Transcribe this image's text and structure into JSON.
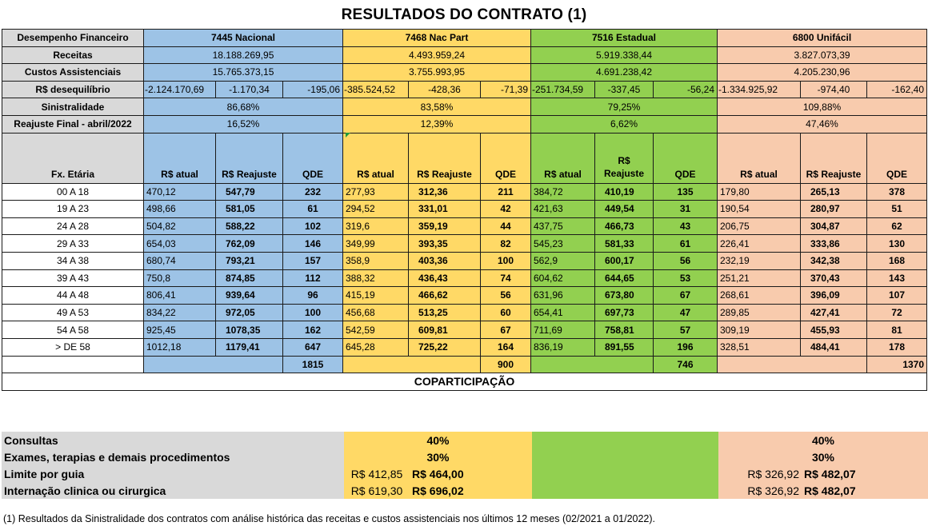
{
  "title": "RESULTADOS DO CONTRATO  (1)",
  "labels": {
    "desempenho": "Desempenho Financeiro",
    "receitas": "Receitas",
    "custos": "Custos Assistenciais",
    "desequilibrio": "R$ desequilíbrio",
    "sinistralidade": "Sinistralidade",
    "reajuste": "Reajuste Final - abril/2022",
    "faixa": "Fx. Etária"
  },
  "plans": [
    {
      "name": "7445 Nacional",
      "receitas": "18.188.269,95",
      "custos": "15.765.373,15",
      "deseq": [
        "-2.124.170,69",
        "-1.170,34",
        "-195,06"
      ],
      "sinistralidade": "86,68%",
      "reajuste": "16,52%",
      "col_atual": "R$ atual",
      "col_reajuste": "R$ Reajuste",
      "col_qde": "QDE",
      "total": "1815"
    },
    {
      "name": "7468 Nac Part",
      "receitas": "4.493.959,24",
      "custos": "3.755.993,95",
      "deseq": [
        "-385.524,52",
        "-428,36",
        "-71,39"
      ],
      "sinistralidade": "83,58%",
      "reajuste": "12,39%",
      "col_atual": "R$ atual",
      "col_reajuste": "R$ Reajuste",
      "col_qde": "QDE",
      "total": "900"
    },
    {
      "name": "7516 Estadual",
      "receitas": "5.919.338,44",
      "custos": "4.691.238,42",
      "deseq": [
        "-251.734,59",
        "-337,45",
        "-56,24"
      ],
      "sinistralidade": "79,25%",
      "reajuste": "6,62%",
      "col_atual": "R$ atual",
      "col_reajuste": "R$ Reajuste",
      "col_qde": "QDE",
      "total": "746"
    },
    {
      "name": "6800 Unifácil",
      "receitas": "3.827.073,39",
      "custos": "4.205.230,96",
      "deseq": [
        "-1.334.925,92",
        "-974,40",
        "-162,40"
      ],
      "sinistralidade": "109,88%",
      "reajuste": "47,46%",
      "col_atual": "R$ atual",
      "col_reajuste": "R$ Reajuste",
      "col_qde": "QDE",
      "total": "1370"
    }
  ],
  "rows": [
    {
      "age": "00 A 18",
      "v": [
        [
          "470,12",
          "547,79",
          "232"
        ],
        [
          "277,93",
          "312,36",
          "211"
        ],
        [
          "384,72",
          "410,19",
          "135"
        ],
        [
          "179,80",
          "265,13",
          "378"
        ]
      ]
    },
    {
      "age": "19 A 23",
      "v": [
        [
          "498,66",
          "581,05",
          "61"
        ],
        [
          "294,52",
          "331,01",
          "42"
        ],
        [
          "421,63",
          "449,54",
          "31"
        ],
        [
          "190,54",
          "280,97",
          "51"
        ]
      ]
    },
    {
      "age": "24 A 28",
      "v": [
        [
          "504,82",
          "588,22",
          "102"
        ],
        [
          "319,6",
          "359,19",
          "44"
        ],
        [
          "437,75",
          "466,73",
          "43"
        ],
        [
          "206,75",
          "304,87",
          "62"
        ]
      ]
    },
    {
      "age": "29 A 33",
      "v": [
        [
          "654,03",
          "762,09",
          "146"
        ],
        [
          "349,99",
          "393,35",
          "82"
        ],
        [
          "545,23",
          "581,33",
          "61"
        ],
        [
          "226,41",
          "333,86",
          "130"
        ]
      ]
    },
    {
      "age": "34 A 38",
      "v": [
        [
          "680,74",
          "793,21",
          "157"
        ],
        [
          "358,9",
          "403,36",
          "100"
        ],
        [
          "562,9",
          "600,17",
          "56"
        ],
        [
          "232,19",
          "342,38",
          "168"
        ]
      ]
    },
    {
      "age": "39 A 43",
      "v": [
        [
          "750,8",
          "874,85",
          "112"
        ],
        [
          "388,32",
          "436,43",
          "74"
        ],
        [
          "604,62",
          "644,65",
          "53"
        ],
        [
          "251,21",
          "370,43",
          "143"
        ]
      ]
    },
    {
      "age": "44 A 48",
      "v": [
        [
          "806,41",
          "939,64",
          "96"
        ],
        [
          "415,19",
          "466,62",
          "56"
        ],
        [
          "631,96",
          "673,80",
          "67"
        ],
        [
          "268,61",
          "396,09",
          "107"
        ]
      ]
    },
    {
      "age": "49 A 53",
      "v": [
        [
          "834,22",
          "972,05",
          "100"
        ],
        [
          "456,68",
          "513,25",
          "60"
        ],
        [
          "654,41",
          "697,73",
          "47"
        ],
        [
          "289,85",
          "427,41",
          "72"
        ]
      ]
    },
    {
      "age": "54 A 58",
      "v": [
        [
          "925,45",
          "1078,35",
          "162"
        ],
        [
          "542,59",
          "609,81",
          "67"
        ],
        [
          "711,69",
          "758,81",
          "57"
        ],
        [
          "309,19",
          "455,93",
          "81"
        ]
      ]
    },
    {
      "age": "> DE 58",
      "v": [
        [
          "1012,18",
          "1179,41",
          "647"
        ],
        [
          "645,28",
          "725,22",
          "164"
        ],
        [
          "836,19",
          "891,55",
          "196"
        ],
        [
          "328,51",
          "484,41",
          "178"
        ]
      ]
    }
  ],
  "coparticipacao": {
    "title": "COPARTICIPAÇÃO",
    "items": [
      {
        "label": "Consultas",
        "nac_part": "40%",
        "unifacil": "40%"
      },
      {
        "label": "Exames, terapias e demais procedimentos",
        "nac_part": "30%",
        "unifacil": "30%"
      },
      {
        "label": "Limite por guia",
        "nac_part_atual": "R$ 412,85",
        "nac_part_novo": "R$ 464,00",
        "unifacil_atual": "R$ 326,92",
        "unifacil_novo": "R$ 482,07"
      },
      {
        "label": "Internação clinica ou cirurgica",
        "nac_part_atual": "R$ 619,30",
        "nac_part_novo": "R$ 696,02",
        "unifacil_atual": "R$ 326,92",
        "unifacil_novo": "R$ 482,07"
      }
    ]
  },
  "footnote": "(1) Resultados da Sinistralidade dos contratos com análise histórica das receitas e custos assistenciais nos últimos 12 meses (02/2021 a 01/2022).",
  "colors": {
    "nacional": "#9dc3e6",
    "nac_part": "#ffd966",
    "estadual": "#92d050",
    "unifacil": "#f8cbad",
    "label_gray": "#d9d9d9"
  }
}
